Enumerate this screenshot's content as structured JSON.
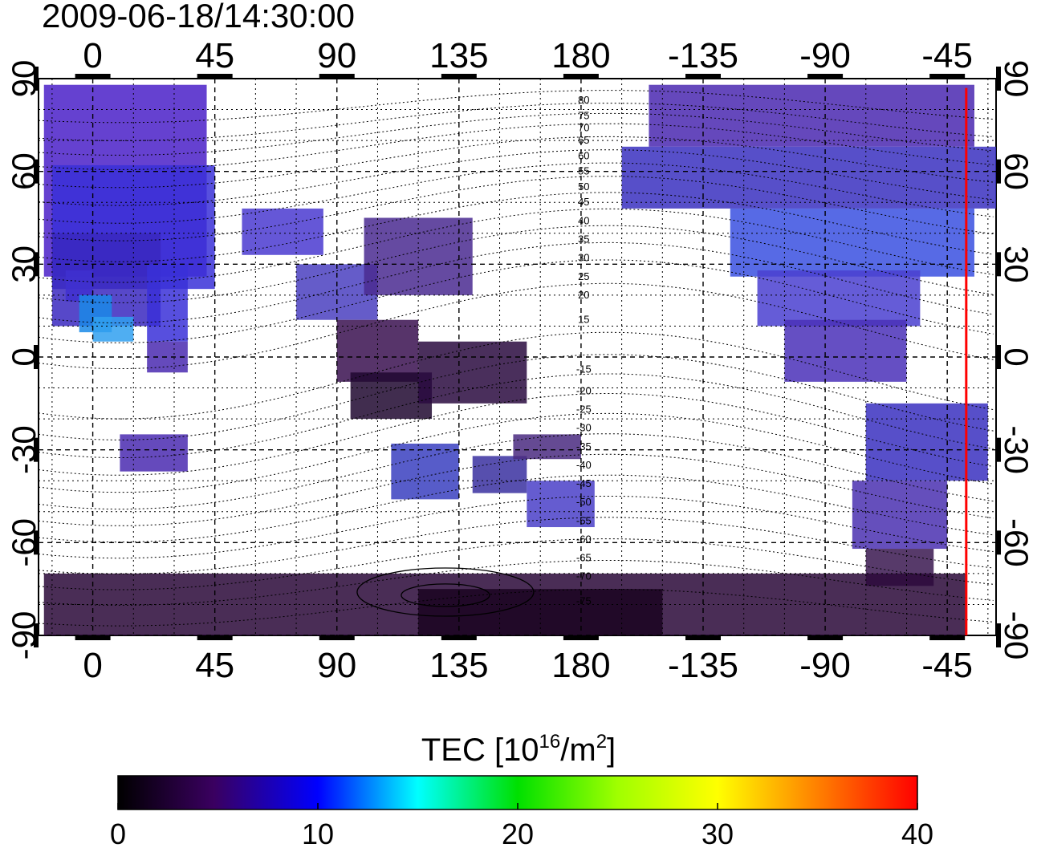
{
  "timestamp": "2009-06-18/14:30:00",
  "map": {
    "top_axis_ticks": [
      "0",
      "45",
      "90",
      "135",
      "180",
      "-135",
      "-90",
      "-45"
    ],
    "bottom_axis_ticks": [
      "0",
      "45",
      "90",
      "135",
      "180",
      "-135",
      "-90",
      "-45"
    ],
    "left_axis_ticks": [
      "90",
      "60",
      "30",
      "0",
      "-30",
      "-60",
      "-90"
    ],
    "right_axis_ticks": [
      "90",
      "60",
      "30",
      "0",
      "-30",
      "-60",
      "-90"
    ],
    "lon_tick_values": [
      0,
      45,
      90,
      135,
      180,
      225,
      270,
      315
    ],
    "lat_tick_values": [
      90,
      60,
      30,
      0,
      -30,
      -60,
      -90
    ],
    "lon_range": [
      -20,
      333
    ],
    "lat_range": [
      -90,
      90
    ],
    "contour_labels": [
      {
        "text": "80",
        "lat": 83
      },
      {
        "text": "75",
        "lat": 78
      },
      {
        "text": "70",
        "lat": 74
      },
      {
        "text": "65",
        "lat": 70
      },
      {
        "text": "60",
        "lat": 65
      },
      {
        "text": "55",
        "lat": 60
      },
      {
        "text": "50",
        "lat": 55
      },
      {
        "text": "45",
        "lat": 50
      },
      {
        "text": "40",
        "lat": 44
      },
      {
        "text": "35",
        "lat": 38
      },
      {
        "text": "30",
        "lat": 32
      },
      {
        "text": "25",
        "lat": 26
      },
      {
        "text": "20",
        "lat": 20
      },
      {
        "text": "15",
        "lat": 12
      },
      {
        "text": "-15",
        "lat": -4
      },
      {
        "text": "-20",
        "lat": -11
      },
      {
        "text": "-25",
        "lat": -17
      },
      {
        "text": "-30",
        "lat": -23
      },
      {
        "text": "-35",
        "lat": -29
      },
      {
        "text": "-40",
        "lat": -35
      },
      {
        "text": "-45",
        "lat": -41
      },
      {
        "text": "-50",
        "lat": -47
      },
      {
        "text": "-55",
        "lat": -53
      },
      {
        "text": "-60",
        "lat": -59
      },
      {
        "text": "-65",
        "lat": -65
      },
      {
        "text": "-70",
        "lat": -71
      },
      {
        "text": "-75",
        "lat": -79
      }
    ],
    "terminator_lon": 322,
    "terminator_color": "#ff0000"
  },
  "colorbar": {
    "title_prefix": "TEC  [10",
    "title_sup1": "16",
    "title_mid": "/m",
    "title_sup2": "2",
    "title_suffix": "]",
    "ticks": [
      "0",
      "10",
      "20",
      "30",
      "40"
    ],
    "tick_values": [
      0,
      10,
      20,
      30,
      40
    ],
    "range": [
      0,
      40
    ],
    "colors": [
      "#000000",
      "#3a0060",
      "#0000ff",
      "#00ffff",
      "#00ff00",
      "#ffff00",
      "#ff8000",
      "#ff0000"
    ]
  }
}
